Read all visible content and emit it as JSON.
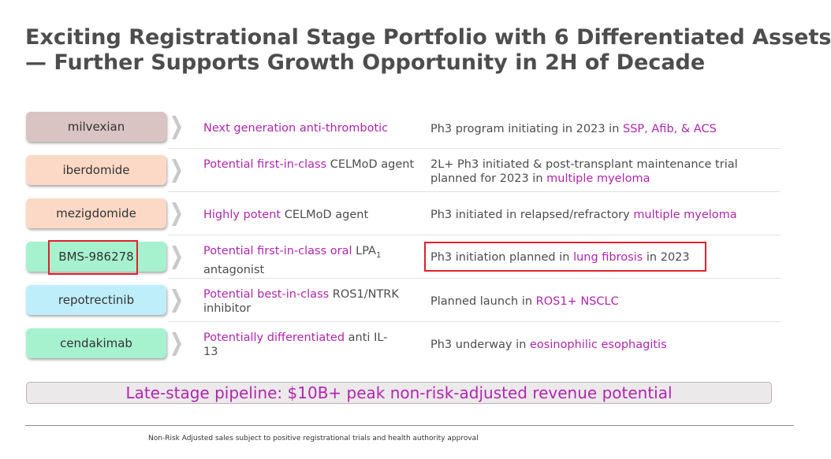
{
  "title": {
    "line1": "Exciting Registrational Stage Portfolio with 6 Differentiated Assets",
    "line2": "— Further Supports Growth Opportunity in 2H of Decade"
  },
  "colors": {
    "highlight_text": "#b026b0",
    "body_text": "#4d4d4d",
    "red_box": "#e0212b",
    "pill_mauve": "#d9c3c3",
    "pill_peach": "#fcd9c6",
    "pill_mint": "#a6f2cf",
    "pill_cyan": "#bfeefb"
  },
  "rows": [
    {
      "asset": "milvexian",
      "pill_color": "#d9c3c3",
      "desc": {
        "highlight": "Next generation anti-thrombotic",
        "rest": "",
        "sub": ""
      },
      "status": {
        "pre": "Ph3 program initiating in 2023 in ",
        "highlight": "SSP, Afib, & ACS",
        "post": ""
      }
    },
    {
      "asset": "iberdomide",
      "pill_color": "#fcd9c6",
      "desc": {
        "highlight": "Potential first-in-class",
        "rest": " CELMoD agent",
        "sub": ""
      },
      "status": {
        "pre": "2L+ Ph3 initiated & post-transplant maintenance trial planned for 2023 in ",
        "highlight": "multiple myeloma",
        "post": ""
      }
    },
    {
      "asset": "mezigdomide",
      "pill_color": "#fcd9c6",
      "desc": {
        "highlight": "Highly potent",
        "rest": " CELMoD agent",
        "sub": ""
      },
      "status": {
        "pre": "Ph3 initiated in relapsed/refractory ",
        "highlight": "multiple myeloma",
        "post": ""
      }
    },
    {
      "asset": "BMS-986278",
      "pill_color": "#a6f2cf",
      "desc": {
        "highlight": "Potential first-in-class oral",
        "rest": " LPA",
        "sub": "1",
        "tail": " antagonist"
      },
      "status": {
        "pre": "Ph3 initiation planned in ",
        "highlight": "lung fibrosis",
        "post": " in 2023"
      }
    },
    {
      "asset": "repotrectinib",
      "pill_color": "#bfeefb",
      "desc": {
        "highlight": "Potential best-in-class",
        "rest": " ROS1/NTRK inhibitor",
        "sub": ""
      },
      "status": {
        "pre": "Planned launch in ",
        "highlight": "ROS1+ NSCLC",
        "post": ""
      }
    },
    {
      "asset": "cendakimab",
      "pill_color": "#a6f2cf",
      "desc": {
        "highlight": "Potentially differentiated",
        "rest": " anti IL-13",
        "sub": ""
      },
      "status": {
        "pre": "Ph3 underway in ",
        "highlight": "eosinophilic esophagitis",
        "post": ""
      }
    }
  ],
  "banner": "Late-stage pipeline: $10B+ peak non-risk-adjusted revenue potential",
  "footnote": "Non-Risk Adjusted sales subject to positive registrational trials and health authority approval"
}
